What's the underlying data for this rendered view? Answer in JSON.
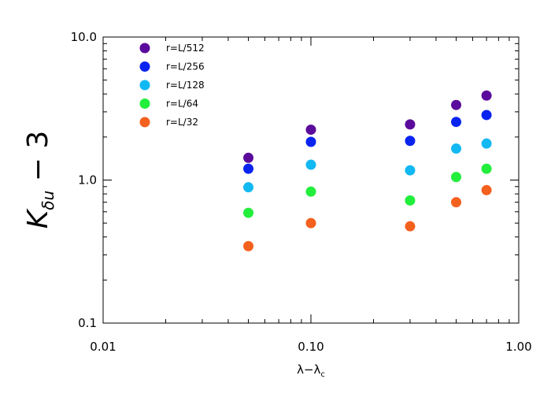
{
  "chart_data": {
    "type": "scatter",
    "title": "",
    "xlabel": "λ−λc",
    "ylabel": "K_δu − 3",
    "xscale": "log",
    "yscale": "log",
    "xlim": [
      0.01,
      1.0
    ],
    "ylim": [
      0.1,
      10.0
    ],
    "xticks": [
      0.01,
      0.1,
      1.0
    ],
    "xtick_labels": [
      "0.01",
      "0.10",
      "1.00"
    ],
    "yticks": [
      0.1,
      1.0,
      10.0
    ],
    "ytick_labels": [
      "0.1",
      "1.0",
      "10.0"
    ],
    "grid": false,
    "legend_position": "top-left",
    "series": [
      {
        "name": "r=L/512",
        "color": "#5b0b9b",
        "x": [
          0.05,
          0.1,
          0.3,
          0.5,
          0.7
        ],
        "y": [
          1.43,
          2.25,
          2.45,
          3.35,
          3.9
        ]
      },
      {
        "name": "r=L/256",
        "color": "#0a24f0",
        "x": [
          0.05,
          0.1,
          0.3,
          0.5,
          0.7
        ],
        "y": [
          1.2,
          1.85,
          1.88,
          2.55,
          2.85
        ]
      },
      {
        "name": "r=L/128",
        "color": "#12b8f2",
        "x": [
          0.05,
          0.1,
          0.3,
          0.5,
          0.7
        ],
        "y": [
          0.89,
          1.28,
          1.17,
          1.66,
          1.8
        ]
      },
      {
        "name": "r=L/64",
        "color": "#22ee3c",
        "x": [
          0.05,
          0.1,
          0.3,
          0.5,
          0.7
        ],
        "y": [
          0.59,
          0.83,
          0.72,
          1.05,
          1.2
        ]
      },
      {
        "name": "r=L/32",
        "color": "#f4601e",
        "x": [
          0.05,
          0.1,
          0.3,
          0.5,
          0.7
        ],
        "y": [
          0.345,
          0.5,
          0.475,
          0.7,
          0.85
        ]
      }
    ]
  }
}
